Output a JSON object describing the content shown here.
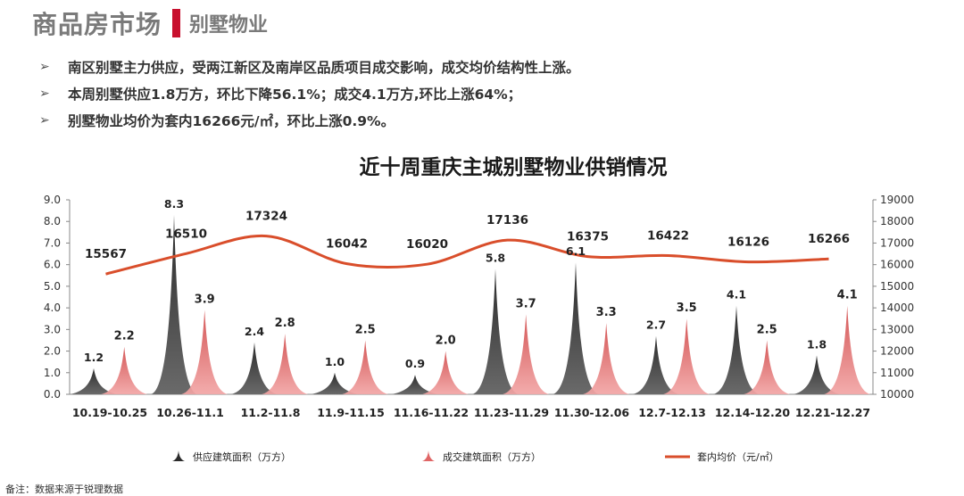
{
  "header": {
    "title": "商品房市场",
    "subtitle": "别墅物业"
  },
  "bullets": [
    "南区别墅主力供应，受两江新区及南岸区品质项目成交影响，成交均价结构性上涨。",
    "本周别墅供应1.8万方，环比下降56.1%；成交4.1万方,环比上涨64%；",
    "别墅物业均价为套内16266元/㎡，环比上涨0.9%。"
  ],
  "bullet_marker": "➢",
  "chart_title": "近十周重庆主城别墅物业供销情况",
  "footnote": "备注：数据来源于锐理数据",
  "colors": {
    "supply": "#2b2b2b",
    "sales": "#e06666",
    "price": "#d94e2b",
    "accent": "#c8102e"
  },
  "chart_data": {
    "type": "area",
    "categories": [
      "10.19-10.25",
      "10.26-11.1",
      "11.2-11.8",
      "11.9-11.15",
      "11.16-11.22",
      "11.23-11.29",
      "11.30-12.06",
      "12.7-12.13",
      "12.14-12.20",
      "12.21-12.27"
    ],
    "series": [
      {
        "name": "供应建筑面积（万方）",
        "values": [
          1.2,
          8.3,
          2.4,
          1.0,
          0.9,
          5.8,
          6.1,
          2.7,
          4.1,
          1.8
        ],
        "axis": "left",
        "style": "peak"
      },
      {
        "name": "成交建筑面积（万方）",
        "values": [
          2.2,
          3.9,
          2.8,
          2.5,
          2.0,
          3.7,
          3.3,
          3.5,
          2.5,
          4.1
        ],
        "axis": "left",
        "style": "peak"
      },
      {
        "name": "套内均价（元/㎡）",
        "values": [
          15567,
          16510,
          17324,
          16042,
          16020,
          17136,
          16375,
          16422,
          16126,
          16266
        ],
        "axis": "right",
        "style": "line"
      }
    ],
    "left_axis": {
      "min": 0,
      "max": 9,
      "step": 1,
      "ticks": [
        "0.0",
        "1.0",
        "2.0",
        "3.0",
        "4.0",
        "5.0",
        "6.0",
        "7.0",
        "8.0",
        "9.0"
      ]
    },
    "right_axis": {
      "min": 10000,
      "max": 19000,
      "step": 1000,
      "ticks": [
        "10000",
        "11000",
        "12000",
        "13000",
        "14000",
        "15000",
        "16000",
        "17000",
        "18000",
        "19000"
      ]
    },
    "grid": false,
    "legend_position": "bottom"
  }
}
